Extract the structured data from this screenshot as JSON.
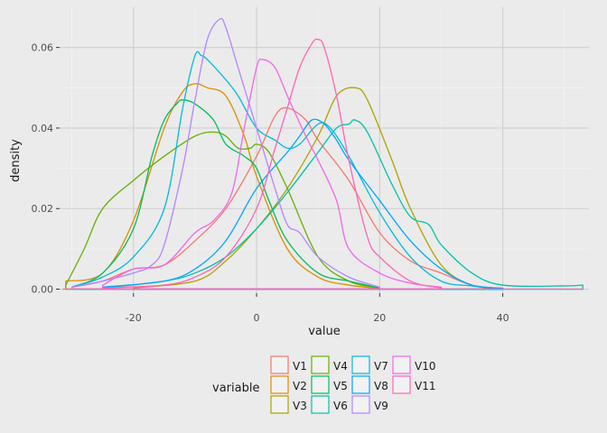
{
  "chart_data": {
    "type": "line",
    "xlabel": "value",
    "ylabel": "density",
    "xlim": [
      -32,
      54
    ],
    "ylim": [
      -0.001,
      0.07
    ],
    "xticks": [
      -20,
      0,
      20,
      40
    ],
    "xtick_labels": [
      "-20",
      "0",
      "20",
      "40"
    ],
    "yticks": [
      0,
      0.02,
      0.04,
      0.06
    ],
    "ytick_labels": [
      "0.00",
      "0.02",
      "0.04",
      "0.06"
    ],
    "grid": true,
    "legend": {
      "title": "variable",
      "position": "bottom"
    },
    "series": [
      {
        "name": "V1",
        "color": "#F8766D",
        "x": [
          -30,
          -25,
          -20,
          -15,
          -10,
          -5,
          0,
          3,
          5,
          8,
          10,
          15,
          20,
          25,
          30,
          35,
          40
        ],
        "y": [
          0.0005,
          0.002,
          0.005,
          0.006,
          0.012,
          0.02,
          0.033,
          0.043,
          0.045,
          0.042,
          0.037,
          0.027,
          0.014,
          0.007,
          0.004,
          0.001,
          0.0002
        ]
      },
      {
        "name": "V2",
        "color": "#DB8E00",
        "x": [
          -31,
          -25,
          -20,
          -15,
          -12,
          -10,
          -8,
          -5,
          -2,
          0,
          5,
          10,
          15,
          20
        ],
        "y": [
          0.002,
          0.004,
          0.017,
          0.04,
          0.049,
          0.051,
          0.05,
          0.048,
          0.038,
          0.028,
          0.01,
          0.003,
          0.001,
          0.0002
        ]
      },
      {
        "name": "V3",
        "color": "#AEA200",
        "x": [
          -20,
          -10,
          -5,
          0,
          5,
          10,
          13,
          16,
          18,
          22,
          25,
          30,
          35,
          40
        ],
        "y": [
          0.0003,
          0.002,
          0.007,
          0.015,
          0.025,
          0.038,
          0.048,
          0.05,
          0.047,
          0.032,
          0.02,
          0.006,
          0.001,
          0.0002
        ]
      },
      {
        "name": "V4",
        "color": "#64B200",
        "x": [
          -31,
          -28,
          -25,
          -20,
          -15,
          -10,
          -7,
          -5,
          -3,
          -1,
          0,
          2,
          5,
          10,
          15,
          20
        ],
        "y": [
          0.001,
          0.01,
          0.02,
          0.027,
          0.033,
          0.038,
          0.039,
          0.038,
          0.035,
          0.035,
          0.036,
          0.034,
          0.025,
          0.008,
          0.002,
          0.0003
        ]
      },
      {
        "name": "V5",
        "color": "#00BD5C",
        "x": [
          -30,
          -25,
          -20,
          -17,
          -15,
          -13,
          -12,
          -10,
          -7,
          -5,
          -2,
          0,
          2,
          5,
          10,
          15,
          20
        ],
        "y": [
          0.0005,
          0.004,
          0.015,
          0.033,
          0.042,
          0.046,
          0.047,
          0.046,
          0.042,
          0.036,
          0.033,
          0.03,
          0.022,
          0.012,
          0.004,
          0.002,
          0.0003
        ]
      },
      {
        "name": "V6",
        "color": "#00C1A7",
        "x": [
          -25,
          -15,
          -10,
          -5,
          0,
          5,
          10,
          13,
          15,
          16,
          18,
          22,
          25,
          28,
          30,
          35,
          40,
          50,
          53
        ],
        "y": [
          0.0003,
          0.002,
          0.004,
          0.008,
          0.015,
          0.024,
          0.034,
          0.04,
          0.041,
          0.042,
          0.039,
          0.026,
          0.018,
          0.016,
          0.011,
          0.004,
          0.001,
          0.0008,
          0.001
        ]
      },
      {
        "name": "V7",
        "color": "#00BADE",
        "x": [
          -30,
          -25,
          -20,
          -15,
          -12,
          -10,
          -9,
          -8,
          -5,
          -3,
          0,
          3,
          5,
          7,
          10,
          12,
          15,
          20,
          25,
          30,
          35,
          40
        ],
        "y": [
          0.0005,
          0.003,
          0.008,
          0.02,
          0.045,
          0.058,
          0.058,
          0.057,
          0.052,
          0.048,
          0.04,
          0.037,
          0.035,
          0.036,
          0.041,
          0.04,
          0.033,
          0.019,
          0.008,
          0.002,
          0.0008,
          0.0002
        ]
      },
      {
        "name": "V8",
        "color": "#00A6FF",
        "x": [
          -25,
          -15,
          -10,
          -5,
          0,
          5,
          7,
          9,
          11,
          13,
          15,
          20,
          25,
          30,
          35,
          40
        ],
        "y": [
          0.0005,
          0.002,
          0.005,
          0.012,
          0.025,
          0.034,
          0.038,
          0.042,
          0.041,
          0.037,
          0.032,
          0.022,
          0.012,
          0.005,
          0.001,
          0.0002
        ]
      },
      {
        "name": "V9",
        "color": "#B385FF",
        "x": [
          -30,
          -25,
          -20,
          -17,
          -15,
          -12,
          -10,
          -8,
          -6,
          -5,
          -3,
          0,
          3,
          5,
          7,
          10,
          15,
          20
        ],
        "y": [
          0.0005,
          0.002,
          0.004,
          0.006,
          0.011,
          0.03,
          0.047,
          0.062,
          0.067,
          0.065,
          0.055,
          0.04,
          0.025,
          0.016,
          0.014,
          0.008,
          0.003,
          0.0005
        ]
      },
      {
        "name": "V10",
        "color": "#EF67EB",
        "x": [
          -25,
          -20,
          -15,
          -10,
          -7,
          -4,
          -2,
          0,
          1,
          3,
          5,
          8,
          10,
          13,
          15,
          20,
          25,
          30
        ],
        "y": [
          0.001,
          0.005,
          0.006,
          0.014,
          0.017,
          0.024,
          0.04,
          0.055,
          0.057,
          0.055,
          0.048,
          0.038,
          0.032,
          0.022,
          0.01,
          0.004,
          0.0015,
          0.0005
        ]
      },
      {
        "name": "V11",
        "color": "#FF63B6",
        "x": [
          -25,
          -15,
          -10,
          -5,
          0,
          3,
          5,
          7,
          9,
          10,
          11,
          13,
          15,
          18,
          20,
          25,
          30
        ],
        "y": [
          0.0003,
          0.001,
          0.003,
          0.008,
          0.02,
          0.035,
          0.045,
          0.055,
          0.061,
          0.062,
          0.06,
          0.048,
          0.032,
          0.013,
          0.008,
          0.002,
          0.0003
        ]
      }
    ]
  }
}
